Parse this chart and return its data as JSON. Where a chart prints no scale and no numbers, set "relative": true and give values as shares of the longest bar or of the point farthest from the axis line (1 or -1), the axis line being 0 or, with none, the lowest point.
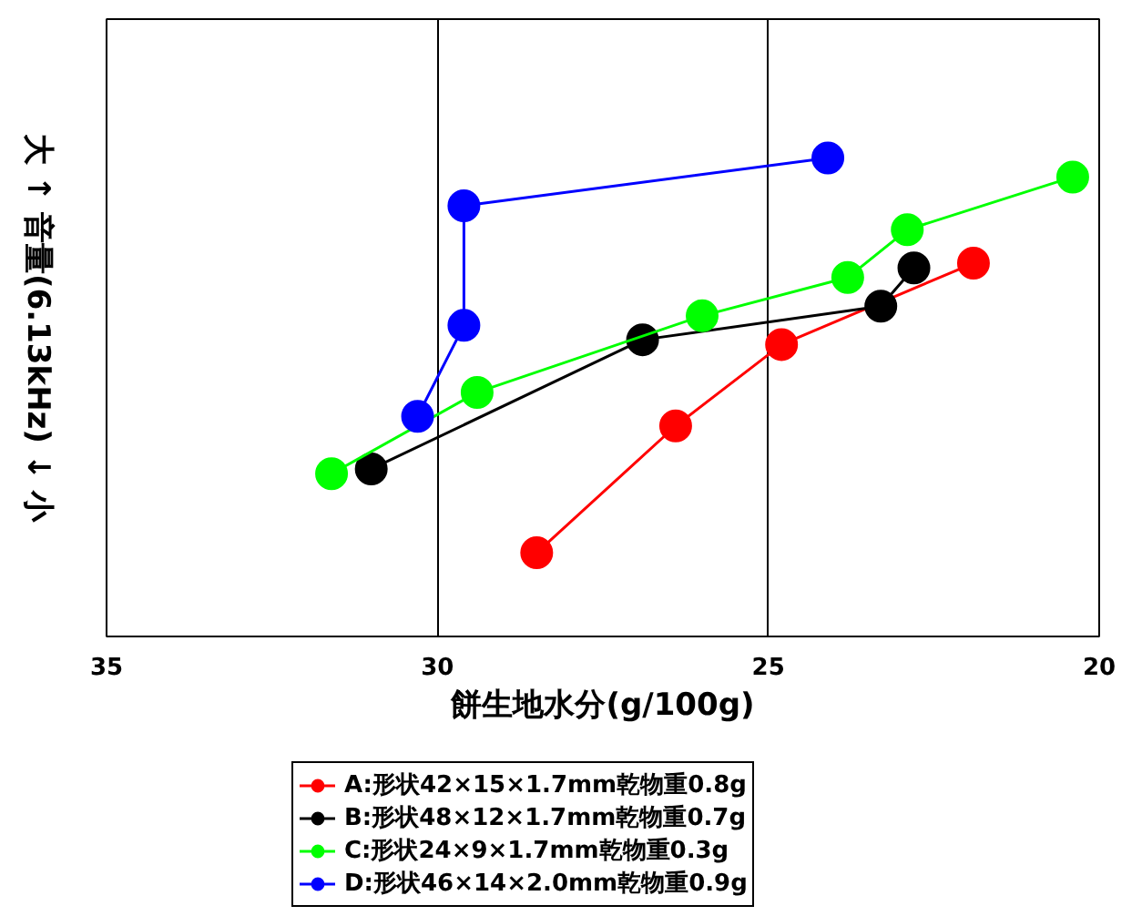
{
  "chart_data": {
    "type": "line",
    "relative": true,
    "xlabel": "餅生地水分(g/100g)",
    "ylabel": "大 ↑ 音量(6.13kHz) ↓ 小",
    "xlim": [
      35,
      20
    ],
    "xticks": [
      35,
      30,
      25,
      20
    ],
    "grid": "x",
    "legend": "bottom",
    "marker": "circle",
    "line_style": "solid",
    "series": [
      {
        "name": "A:形状42×15×1.7mm乾物重0.8g",
        "color": "#ff0000",
        "x": [
          28.5,
          26.4,
          24.8,
          21.9
        ],
        "values": [
          0.175,
          0.44,
          0.61,
          0.78
        ]
      },
      {
        "name": "B:形状48×12×1.7mm乾物重0.7g",
        "color": "#000000",
        "x": [
          31.0,
          26.9,
          23.3,
          22.8
        ],
        "values": [
          0.35,
          0.62,
          0.69,
          0.77
        ]
      },
      {
        "name": "C:形状24×9×1.7mm乾物重0.3g",
        "color": "#00ff00",
        "x": [
          31.6,
          29.4,
          26.0,
          23.8,
          22.9,
          20.4
        ],
        "values": [
          0.34,
          0.51,
          0.67,
          0.75,
          0.85,
          0.96
        ]
      },
      {
        "name": "D:形状46×14×2.0mm乾物重0.9g",
        "color": "#0000ff",
        "x": [
          30.3,
          29.6,
          29.6,
          24.1
        ],
        "values": [
          0.46,
          0.65,
          0.9,
          1.0
        ]
      }
    ]
  }
}
